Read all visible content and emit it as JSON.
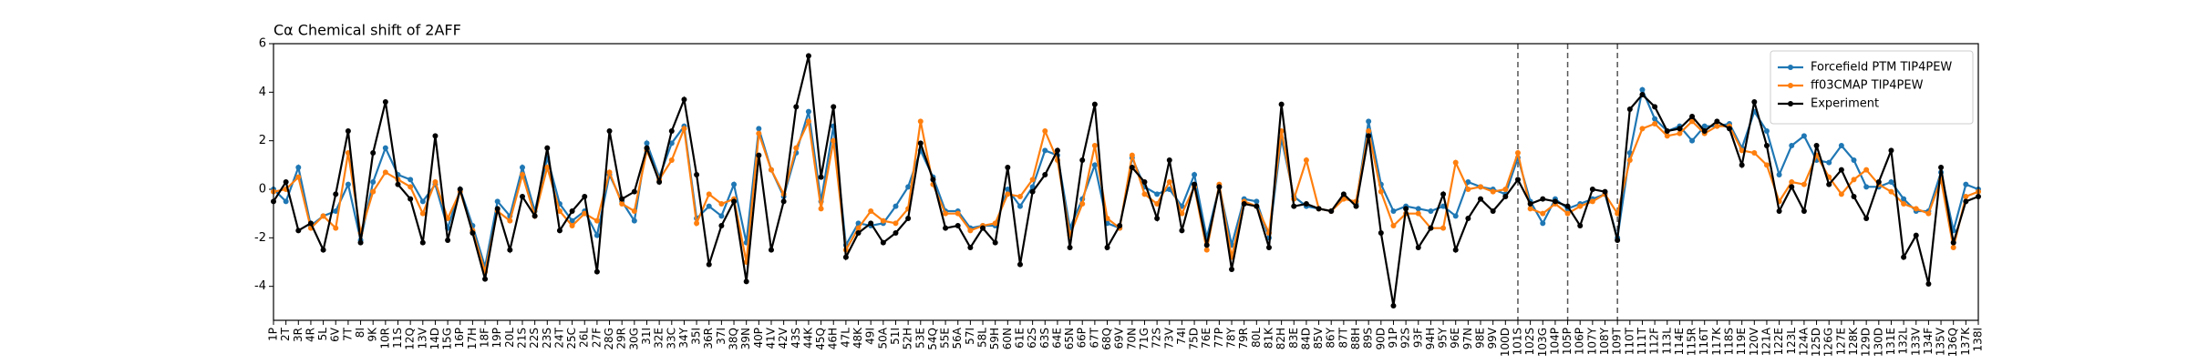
{
  "chart_data": {
    "type": "line",
    "title": "Cα Chemical shift of 2AFF",
    "categories": [
      "1P",
      "2T",
      "3R",
      "4R",
      "5L",
      "6V",
      "7T",
      "8I",
      "9K",
      "10R",
      "11S",
      "12Q",
      "13V",
      "14D",
      "15G",
      "16P",
      "17H",
      "18F",
      "19P",
      "20L",
      "21S",
      "22S",
      "23S",
      "24T",
      "25C",
      "26L",
      "27F",
      "28G",
      "29R",
      "30G",
      "31I",
      "32E",
      "33C",
      "34Y",
      "35I",
      "36R",
      "37I",
      "38Q",
      "39N",
      "40P",
      "41V",
      "42V",
      "43S",
      "44K",
      "45Q",
      "46H",
      "47L",
      "48K",
      "49I",
      "50A",
      "51I",
      "52H",
      "53E",
      "54Q",
      "55E",
      "56A",
      "57I",
      "58L",
      "59H",
      "60N",
      "61E",
      "62S",
      "63S",
      "64E",
      "65N",
      "66P",
      "67T",
      "68Q",
      "69V",
      "70N",
      "71G",
      "72S",
      "73V",
      "74I",
      "75D",
      "76E",
      "77P",
      "78Y",
      "79R",
      "80L",
      "81K",
      "82H",
      "83E",
      "84D",
      "85V",
      "86Y",
      "87T",
      "88H",
      "89S",
      "90D",
      "91P",
      "92S",
      "93F",
      "94H",
      "95Y",
      "96E",
      "97N",
      "98E",
      "99V",
      "100D",
      "101S",
      "102S",
      "103G",
      "104P",
      "105P",
      "106P",
      "107Y",
      "108Y",
      "109T",
      "110T",
      "111T",
      "112F",
      "113L",
      "114E",
      "115R",
      "116T",
      "117K",
      "118S",
      "119E",
      "120V",
      "121A",
      "122E",
      "123L",
      "124A",
      "125D",
      "126G",
      "127E",
      "128K",
      "129D",
      "130D",
      "131E",
      "132L",
      "133V",
      "134F",
      "135V",
      "136Q",
      "137K",
      "138I"
    ],
    "series": [
      {
        "name": "Forcefield PTM TIP4PEW",
        "color": "#1f77b4",
        "values": [
          0,
          -0.5,
          0.9,
          -1.5,
          -1.1,
          -0.9,
          0.2,
          -2.1,
          0.3,
          1.7,
          0.6,
          0.4,
          -0.5,
          0.2,
          -1.6,
          0,
          -1.5,
          -3.2,
          -0.5,
          -1.1,
          0.9,
          -0.9,
          1.3,
          -0.6,
          -1.3,
          -0.9,
          -1.9,
          0.6,
          -0.5,
          -1.3,
          1.9,
          0.5,
          1.9,
          2.6,
          -1.2,
          -0.7,
          -1.1,
          0.2,
          -2.2,
          2.5,
          0.8,
          -0.3,
          1.5,
          3.2,
          -0.5,
          2.6,
          -2.3,
          -1.4,
          -1.5,
          -1.4,
          -0.7,
          0.1,
          1.6,
          0.5,
          -0.9,
          -0.9,
          -1.6,
          -1.5,
          -1.5,
          0,
          -0.7,
          0.1,
          1.6,
          1.4,
          -1.6,
          -0.4,
          1.0,
          -1.4,
          -1.6,
          1.3,
          0.1,
          -0.2,
          0,
          -0.7,
          0.6,
          -2.0,
          0.1,
          -2.3,
          -0.4,
          -0.5,
          -2.0,
          2.1,
          -0.3,
          -0.7,
          -0.8,
          -0.9,
          -0.3,
          -0.6,
          2.8,
          0.2,
          -0.9,
          -0.7,
          -0.8,
          -0.9,
          -0.7,
          -1.1,
          0.3,
          0.1,
          0,
          -0.2,
          1.3,
          -0.5,
          -1.4,
          -0.4,
          -0.8,
          -0.6,
          -0.4,
          -0.2,
          -2.0,
          1.5,
          4.1,
          2.9,
          2.4,
          2.6,
          2.0,
          2.6,
          2.6,
          2.7,
          1.7,
          3.2,
          2.4,
          0.6,
          1.8,
          2.2,
          1.2,
          1.1,
          1.8,
          1.2,
          0.1,
          0.1,
          0.3,
          -0.4,
          -0.9,
          -0.9,
          0.7,
          -1.7,
          0.2,
          0
        ]
      },
      {
        "name": "ff03CMAP TIP4PEW",
        "color": "#ff7f0e",
        "values": [
          -0.1,
          0,
          0.5,
          -1.6,
          -1.1,
          -1.6,
          1.5,
          -1.8,
          -0.1,
          0.7,
          0.4,
          0.1,
          -1.0,
          0.3,
          -1.2,
          -0.1,
          -1.7,
          -3.4,
          -0.9,
          -1.3,
          0.6,
          -1.1,
          0.9,
          -0.9,
          -1.5,
          -1.0,
          -1.3,
          0.7,
          -0.6,
          -0.9,
          1.6,
          0.4,
          1.2,
          2.5,
          -1.4,
          -0.2,
          -0.6,
          -0.4,
          -3.0,
          2.3,
          0.8,
          -0.2,
          1.7,
          2.8,
          -0.8,
          2.0,
          -2.5,
          -1.6,
          -0.9,
          -1.3,
          -1.4,
          -0.8,
          2.8,
          0.2,
          -1.0,
          -1.0,
          -1.7,
          -1.5,
          -1.4,
          -0.2,
          -0.3,
          0.4,
          2.4,
          1.2,
          -1.9,
          -0.6,
          1.8,
          -1.2,
          -1.6,
          1.4,
          -0.2,
          -0.6,
          0.3,
          -1.0,
          0.1,
          -2.5,
          0.2,
          -2.8,
          -0.5,
          -0.7,
          -1.8,
          2.4,
          -0.4,
          1.2,
          -0.8,
          -0.9,
          -0.4,
          -0.5,
          2.4,
          -0.1,
          -1.5,
          -1.0,
          -1.0,
          -1.6,
          -1.6,
          1.1,
          0,
          0.1,
          -0.1,
          0,
          1.5,
          -0.8,
          -1.0,
          -0.6,
          -1.0,
          -0.7,
          -0.5,
          -0.2,
          -1.0,
          1.2,
          2.5,
          2.7,
          2.2,
          2.3,
          2.8,
          2.3,
          2.6,
          2.6,
          1.6,
          1.5,
          1.0,
          -0.5,
          0.3,
          0.2,
          1.4,
          0.5,
          -0.2,
          0.4,
          0.8,
          0.2,
          -0.1,
          -0.6,
          -0.8,
          -1.0,
          0.4,
          -2.4,
          -0.3,
          -0.1
        ]
      },
      {
        "name": "Experiment",
        "color": "#000000",
        "values": [
          -0.5,
          0.3,
          -1.7,
          -1.4,
          -2.5,
          -0.2,
          2.4,
          -2.2,
          1.5,
          3.6,
          0.2,
          -0.4,
          -2.2,
          2.2,
          -2.1,
          0,
          -1.8,
          -3.7,
          -0.8,
          -2.5,
          -0.3,
          -1.1,
          1.7,
          -1.7,
          -0.9,
          -0.3,
          -3.4,
          2.4,
          -0.4,
          -0.1,
          1.7,
          0.3,
          2.4,
          3.7,
          0.6,
          -3.1,
          -1.5,
          -0.5,
          -3.8,
          1.4,
          -2.5,
          -0.5,
          3.4,
          5.5,
          0.5,
          3.4,
          -2.8,
          -1.8,
          -1.4,
          -2.2,
          -1.8,
          -1.2,
          1.9,
          0.4,
          -1.6,
          -1.5,
          -2.4,
          -1.6,
          -2.2,
          0.9,
          -3.1,
          -0.1,
          0.6,
          1.6,
          -2.4,
          1.2,
          3.5,
          -2.4,
          -1.5,
          0.9,
          0.3,
          -1.2,
          1.2,
          -1.7,
          0.2,
          -2.3,
          0.1,
          -3.3,
          -0.6,
          -0.7,
          -2.4,
          3.5,
          -0.7,
          -0.6,
          -0.8,
          -0.9,
          -0.2,
          -0.7,
          2.2,
          -1.8,
          -4.8,
          -0.8,
          -2.4,
          -1.6,
          -0.2,
          -2.5,
          -1.2,
          -0.4,
          -0.9,
          -0.3,
          0.4,
          -0.6,
          -0.4,
          -0.5,
          -0.7,
          -1.5,
          0,
          -0.1,
          -2.1,
          3.3,
          3.9,
          3.4,
          2.4,
          2.5,
          3.0,
          2.4,
          2.8,
          2.5,
          1.0,
          3.6,
          1.8,
          -0.9,
          0.1,
          -0.9,
          1.8,
          0.2,
          0.8,
          -0.3,
          -1.2,
          0.3,
          1.6,
          -2.8,
          -1.9,
          -3.9,
          0.9,
          -2.2,
          -0.5,
          -0.3
        ]
      }
    ],
    "ylim": [
      -5.4,
      6
    ],
    "yticks": [
      -4,
      -2,
      0,
      2,
      4,
      6
    ],
    "vlines": [
      "101S",
      "105P",
      "109T"
    ],
    "legend": "upper right"
  }
}
